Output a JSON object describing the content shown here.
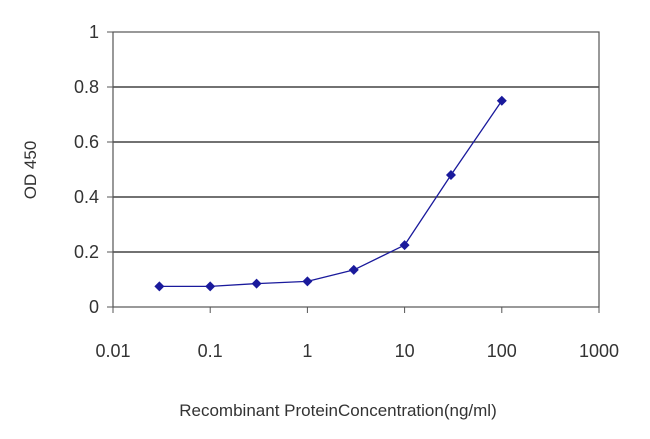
{
  "chart_data": {
    "type": "line",
    "title": "",
    "xlabel": "Recombinant ProteinConcentration(ng/ml)",
    "ylabel": "OD 450",
    "x_scale": "log",
    "xlim": [
      0.01,
      1000
    ],
    "ylim": [
      0,
      1
    ],
    "x_ticks": [
      0.01,
      0.1,
      1,
      10,
      100,
      1000
    ],
    "x_tick_labels": [
      "0.01",
      "0.1",
      "1",
      "10",
      "100",
      "1000"
    ],
    "y_ticks": [
      0,
      0.2,
      0.4,
      0.6,
      0.8,
      1
    ],
    "y_tick_labels": [
      "0",
      "0.2",
      "0.4",
      "0.6",
      "0.8",
      "1"
    ],
    "grid": "horizontal",
    "legend": "none",
    "series": [
      {
        "color": "#1a1a9c",
        "marker": "diamond",
        "x": [
          0.03,
          0.1,
          0.3,
          1,
          3,
          10,
          30,
          100
        ],
        "y": [
          0.075,
          0.075,
          0.085,
          0.093,
          0.135,
          0.225,
          0.48,
          0.75
        ]
      }
    ]
  }
}
